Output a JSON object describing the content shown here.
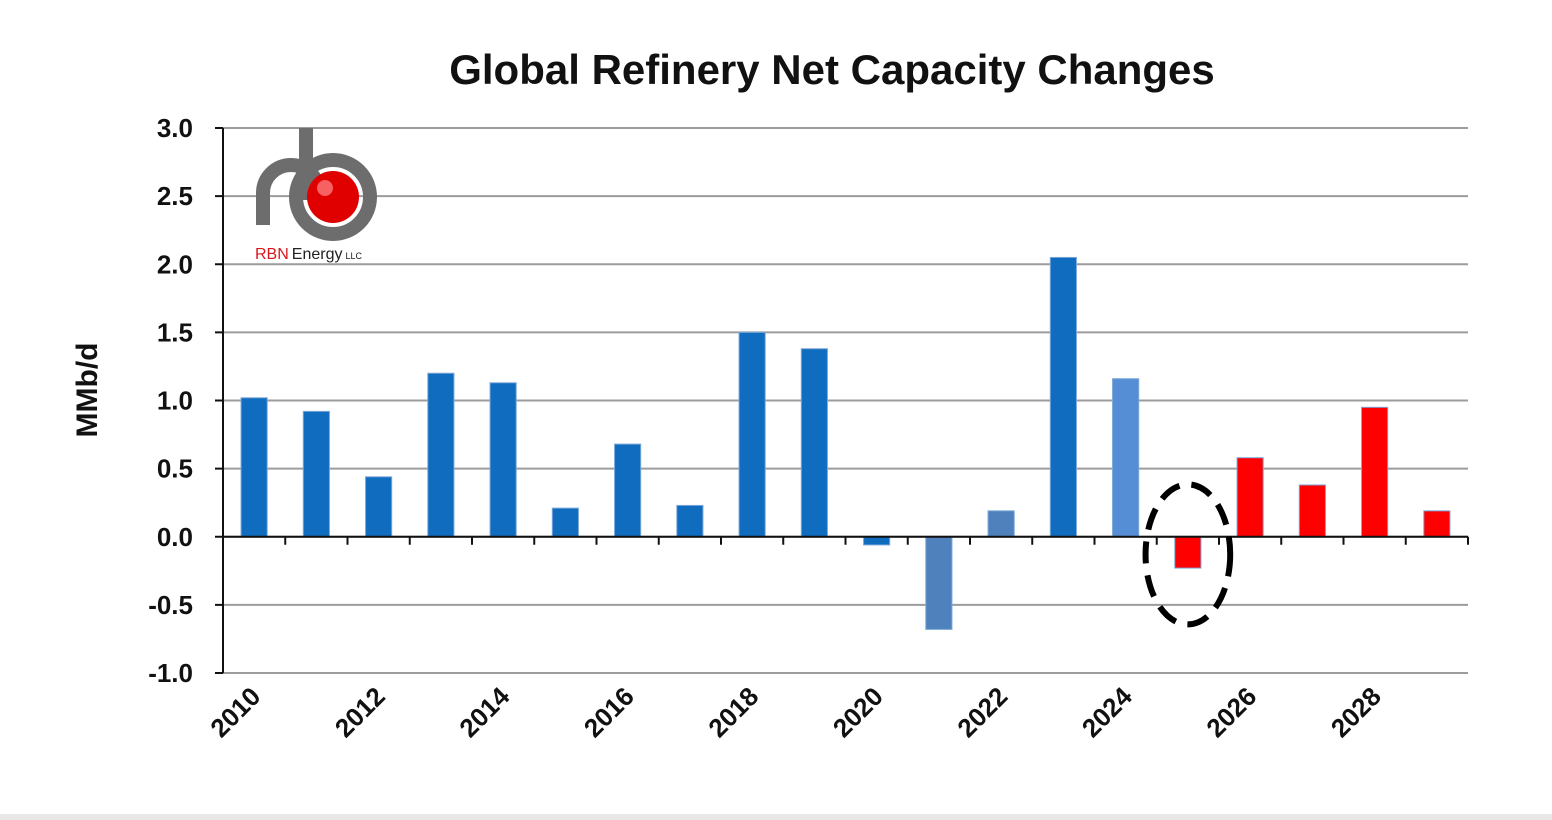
{
  "chart_data": {
    "type": "bar",
    "title": "Global Refinery Net Capacity Changes",
    "xlabel": "",
    "ylabel": "MMb/d",
    "ylim": [
      -1.0,
      3.0
    ],
    "ytick_labels": [
      "3.0",
      "2.5",
      "2.0",
      "1.5",
      "1.0",
      "0.5",
      "0.0",
      "-0.5",
      "-1.0"
    ],
    "yticks": [
      3.0,
      2.5,
      2.0,
      1.5,
      1.0,
      0.5,
      0.0,
      -0.5,
      -1.0
    ],
    "grid": true,
    "categories": [
      "2010",
      "2011",
      "2012",
      "2013",
      "2014",
      "2015",
      "2016",
      "2017",
      "2018",
      "2019",
      "2020",
      "2021",
      "2022",
      "2023",
      "2024",
      "2025",
      "2026",
      "2027",
      "2028",
      "2029"
    ],
    "x_tick_labels": [
      "2010",
      "2012",
      "2014",
      "2016",
      "2018",
      "2020",
      "2022",
      "2024",
      "2026",
      "2028"
    ],
    "values": [
      1.02,
      0.92,
      0.44,
      1.2,
      1.13,
      0.21,
      0.68,
      0.23,
      1.5,
      1.38,
      -0.06,
      -0.68,
      0.19,
      2.05,
      1.16,
      -0.23,
      0.58,
      0.38,
      0.95,
      0.19
    ],
    "bar_colors": [
      "#0f6cbf",
      "#0f6cbf",
      "#0f6cbf",
      "#0f6cbf",
      "#0f6cbf",
      "#0f6cbf",
      "#0f6cbf",
      "#0f6cbf",
      "#0f6cbf",
      "#0f6cbf",
      "#0f6cbf",
      "#4f81bd",
      "#4f81bd",
      "#0f6cbf",
      "#558ed5",
      "#ff0000",
      "#ff0000",
      "#ff0000",
      "#ff0000",
      "#ff0000"
    ],
    "highlighted_category": "2025",
    "highlight_style": "dashed-ellipse"
  },
  "logo": {
    "brand": "RBN",
    "name": "Energy",
    "suffix": "LLC",
    "brand_color": "#d9181e",
    "pipe_color": "#6d6d6d",
    "ball_color": "#e00000"
  },
  "colors": {
    "axis": "#111111",
    "grid": "#9c9c9c",
    "highlight_ellipse": "#000000"
  }
}
